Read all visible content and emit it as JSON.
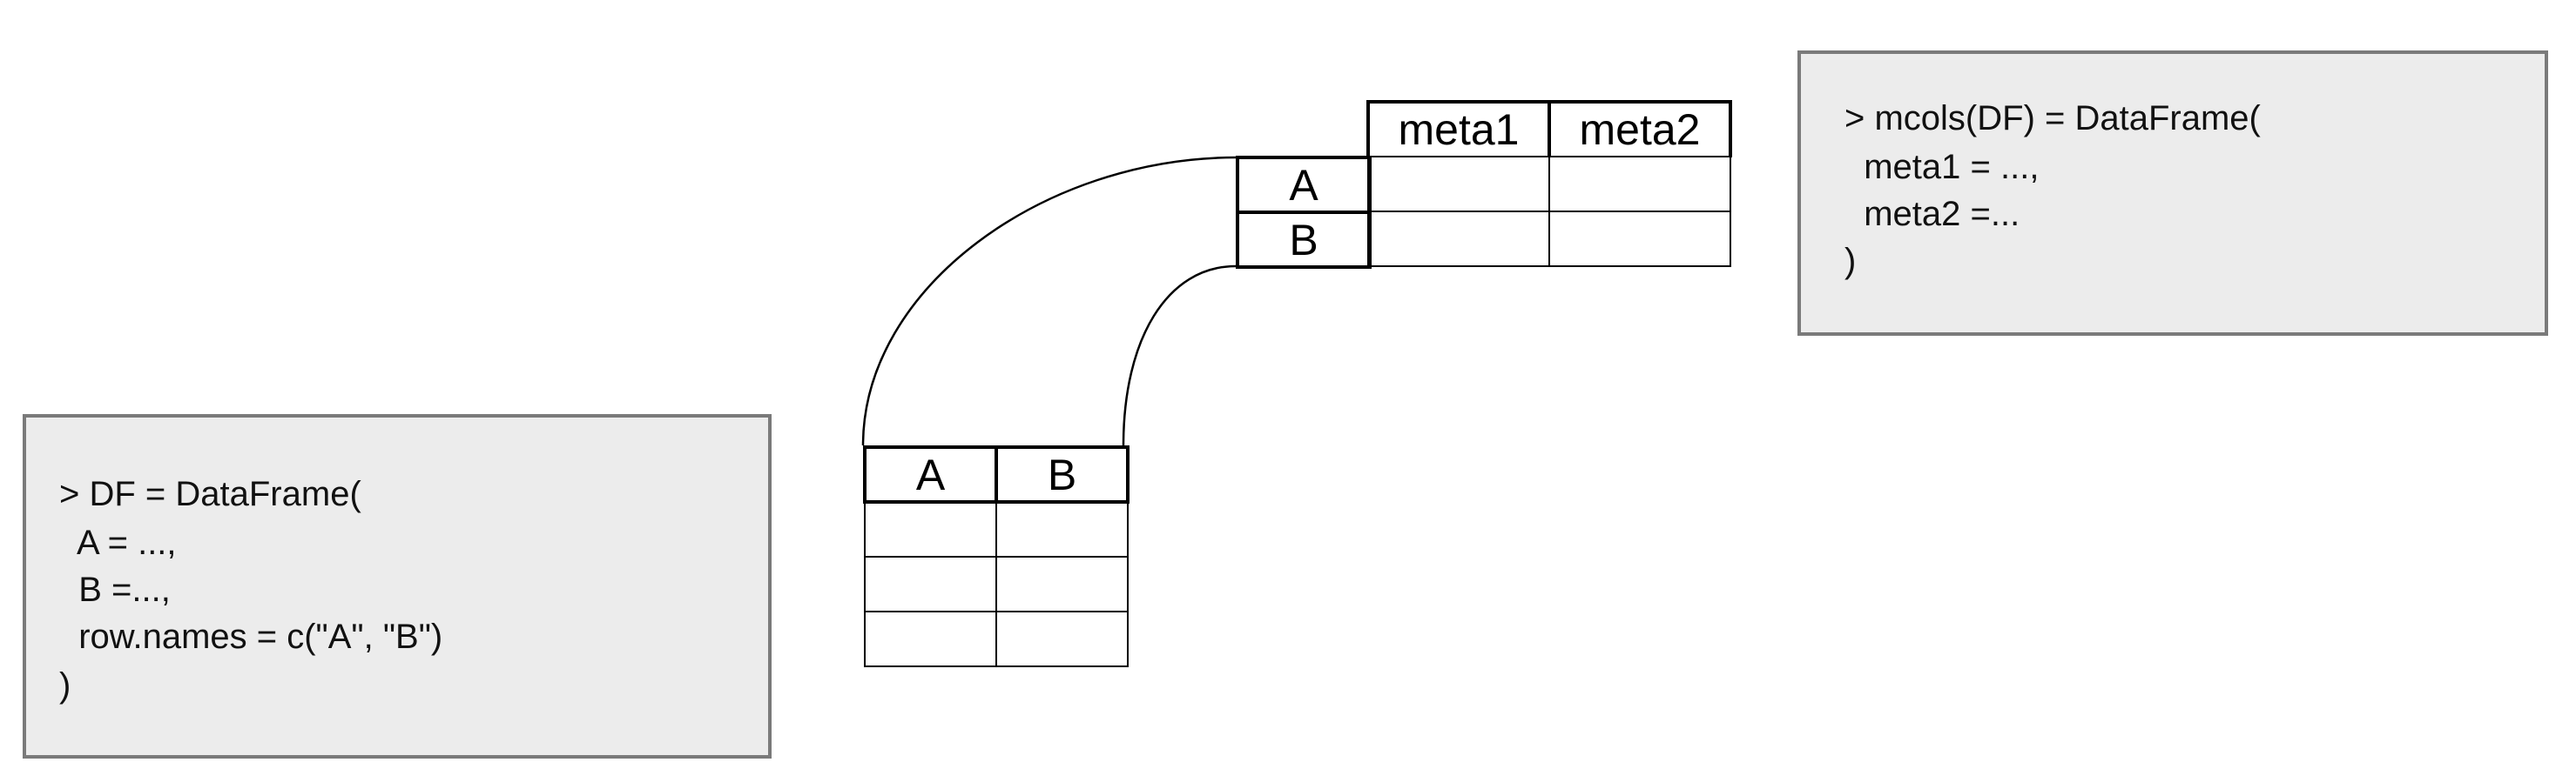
{
  "df_code": {
    "lines": [
      "> DF = DataFrame(",
      "  A = ...,",
      "  B =...,",
      "  row.names = c(\"A\", \"B\")",
      ")"
    ]
  },
  "mcols_code": {
    "lines": [
      "> mcols(DF) = DataFrame(",
      "  meta1 = ...,",
      "  meta2 =...",
      ")"
    ]
  },
  "df_table": {
    "headers": [
      "A",
      "B"
    ],
    "rows": [
      [
        "",
        ""
      ],
      [
        "",
        ""
      ],
      [
        "",
        ""
      ]
    ]
  },
  "mcols_table": {
    "headers": [
      "meta1",
      "meta2"
    ],
    "row_names": [
      "A",
      "B"
    ],
    "rows": [
      [
        "",
        ""
      ],
      [
        "",
        ""
      ]
    ]
  },
  "colors": {
    "code_box_fill": "#ececec",
    "code_box_border": "#7a7a7a",
    "lines": "#000000"
  }
}
